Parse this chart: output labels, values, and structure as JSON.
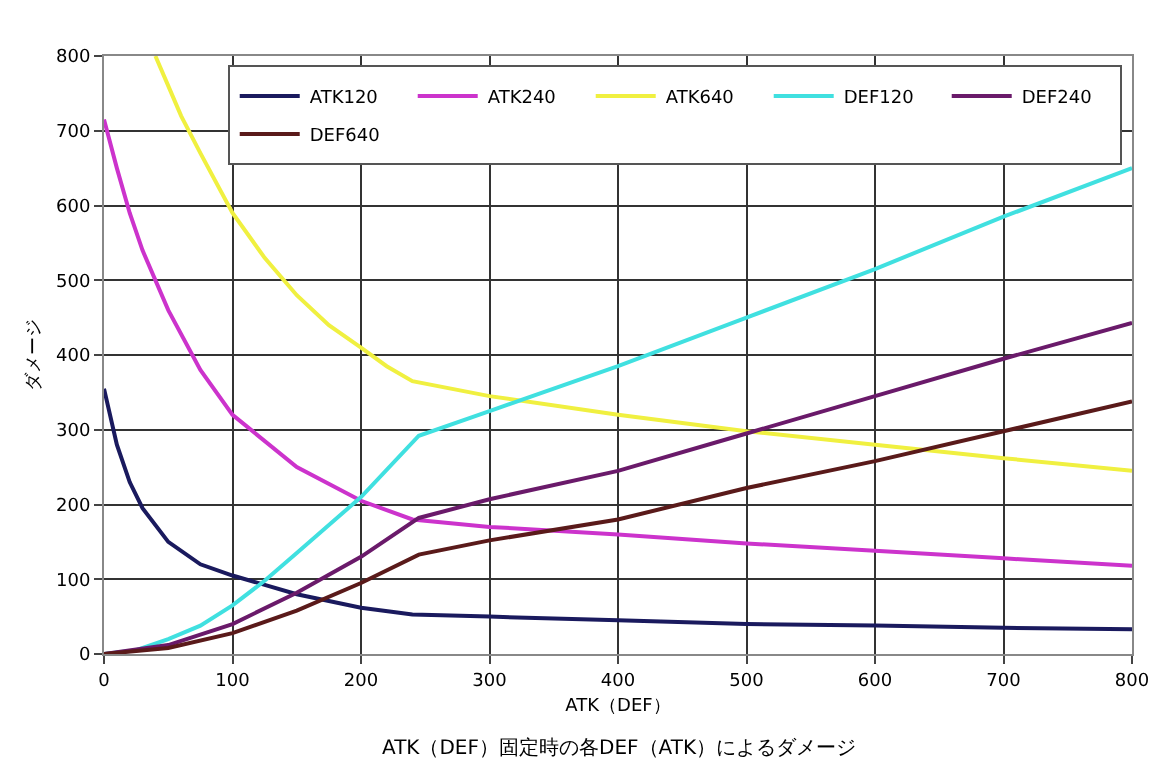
{
  "chart_data": {
    "type": "line",
    "xlabel": "ATK（DEF）",
    "ylabel": "ダメージ",
    "annotations": [
      "ATK（DEF）固定時の各DEF（ATK）によるダメージ"
    ],
    "xlim": [
      0,
      800
    ],
    "ylim": [
      0,
      800
    ],
    "xticks": [
      0,
      100,
      200,
      300,
      400,
      500,
      600,
      700,
      800
    ],
    "yticks": [
      0,
      100,
      200,
      300,
      400,
      500,
      600,
      700,
      800
    ],
    "grid": true,
    "legend": "top",
    "marker": "none",
    "line_style": "solid",
    "series": [
      {
        "name": "ATK120",
        "color": "#1a1a5e",
        "x": [
          0,
          10,
          20,
          30,
          50,
          75,
          100,
          150,
          200,
          240,
          300,
          400,
          500,
          600,
          700,
          800
        ],
        "values": [
          355,
          280,
          230,
          195,
          150,
          120,
          105,
          80,
          62,
          53,
          50,
          45,
          40,
          38,
          35,
          33
        ]
      },
      {
        "name": "ATK240",
        "color": "#cc33cc",
        "x": [
          0,
          10,
          20,
          30,
          50,
          75,
          100,
          150,
          200,
          240,
          300,
          400,
          500,
          600,
          700,
          800
        ],
        "values": [
          715,
          650,
          590,
          540,
          460,
          380,
          320,
          250,
          205,
          180,
          170,
          160,
          148,
          138,
          128,
          118
        ]
      },
      {
        "name": "ATK640",
        "color": "#f0f040",
        "x": [
          40,
          50,
          60,
          75,
          100,
          125,
          150,
          175,
          200,
          220,
          240,
          300,
          400,
          500,
          600,
          700,
          800
        ],
        "values": [
          800,
          760,
          720,
          670,
          590,
          530,
          480,
          440,
          410,
          385,
          365,
          345,
          320,
          298,
          280,
          262,
          245
        ]
      },
      {
        "name": "DEF120",
        "color": "#40e0e0",
        "x": [
          0,
          25,
          50,
          75,
          100,
          125,
          150,
          200,
          245,
          300,
          400,
          500,
          600,
          700,
          800
        ],
        "values": [
          0,
          5,
          20,
          38,
          65,
          98,
          135,
          210,
          292,
          325,
          385,
          450,
          515,
          585,
          650
        ]
      },
      {
        "name": "DEF240",
        "color": "#6a1a6a",
        "x": [
          0,
          50,
          100,
          150,
          200,
          245,
          300,
          400,
          500,
          600,
          700,
          800
        ],
        "values": [
          0,
          12,
          40,
          82,
          130,
          182,
          207,
          245,
          295,
          345,
          395,
          443
        ]
      },
      {
        "name": "DEF640",
        "color": "#5a1a1a",
        "x": [
          0,
          50,
          100,
          150,
          200,
          245,
          300,
          400,
          500,
          600,
          700,
          800
        ],
        "values": [
          0,
          8,
          28,
          58,
          95,
          133,
          152,
          180,
          222,
          258,
          298,
          338
        ]
      }
    ]
  }
}
